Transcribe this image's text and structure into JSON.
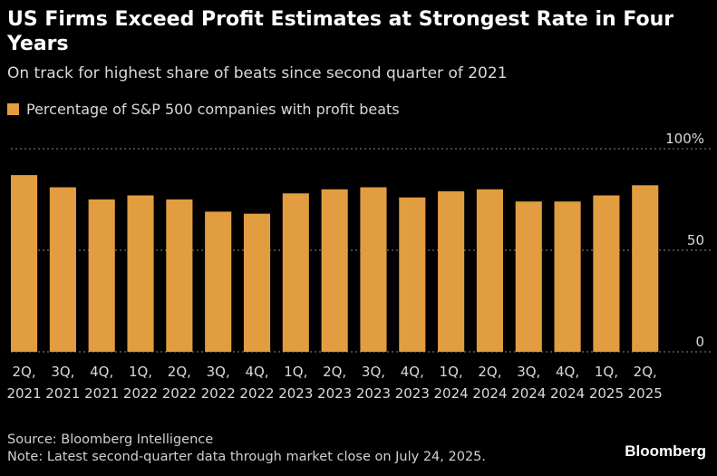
{
  "header": {
    "title": "US Firms Exceed Profit Estimates at Strongest Rate in Four Years",
    "subtitle": "On track for highest share of beats since second quarter of 2021"
  },
  "colors": {
    "bar": "#e19d40",
    "background": "#000000",
    "grid": "#8a8a8a"
  },
  "chart_data": {
    "type": "bar",
    "series": [
      {
        "name": "Percentage of S&P 500 companies with profit beats",
        "values": [
          87,
          81,
          75,
          77,
          75,
          69,
          68,
          78,
          80,
          81,
          76,
          79,
          80,
          74,
          74,
          77,
          82
        ]
      }
    ],
    "categories": [
      [
        "2Q,",
        "2021"
      ],
      [
        "3Q,",
        "2021"
      ],
      [
        "4Q,",
        "2021"
      ],
      [
        "1Q,",
        "2022"
      ],
      [
        "2Q,",
        "2022"
      ],
      [
        "3Q,",
        "2022"
      ],
      [
        "4Q,",
        "2022"
      ],
      [
        "1Q,",
        "2023"
      ],
      [
        "2Q,",
        "2023"
      ],
      [
        "3Q,",
        "2023"
      ],
      [
        "4Q,",
        "2023"
      ],
      [
        "1Q,",
        "2024"
      ],
      [
        "2Q,",
        "2024"
      ],
      [
        "3Q,",
        "2024"
      ],
      [
        "4Q,",
        "2024"
      ],
      [
        "1Q,",
        "2025"
      ],
      [
        "2Q,",
        "2025"
      ]
    ],
    "ylim": [
      0,
      100
    ],
    "yticks": [
      {
        "value": 100,
        "label": "100%"
      },
      {
        "value": 50,
        "label": "50"
      },
      {
        "value": 0,
        "label": "0"
      }
    ],
    "grid": "dashed horizontal",
    "legend": "top-left"
  },
  "footer": {
    "source": "Source: Bloomberg Intelligence",
    "note": "Note: Latest second-quarter data through market close on July 24, 2025."
  },
  "brand": "Bloomberg"
}
